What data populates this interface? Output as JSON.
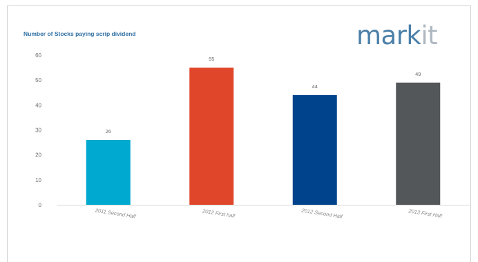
{
  "chart_data": {
    "type": "bar",
    "title": "Number of Stocks paying scrip dividend",
    "categories": [
      "2011 Second Half",
      "2012 First half",
      "2012 Second Half",
      "2013 First Half"
    ],
    "values": [
      26,
      55,
      44,
      49
    ],
    "colors": [
      "#00a9cf",
      "#e0472a",
      "#00438d",
      "#54575a"
    ],
    "ylim": [
      0,
      60
    ],
    "yticks": [
      "0",
      "10",
      "20",
      "30",
      "40",
      "50",
      "60"
    ],
    "grid": false,
    "data_labels": true
  },
  "brand": {
    "logo_main": "mark",
    "logo_accent": "it"
  }
}
